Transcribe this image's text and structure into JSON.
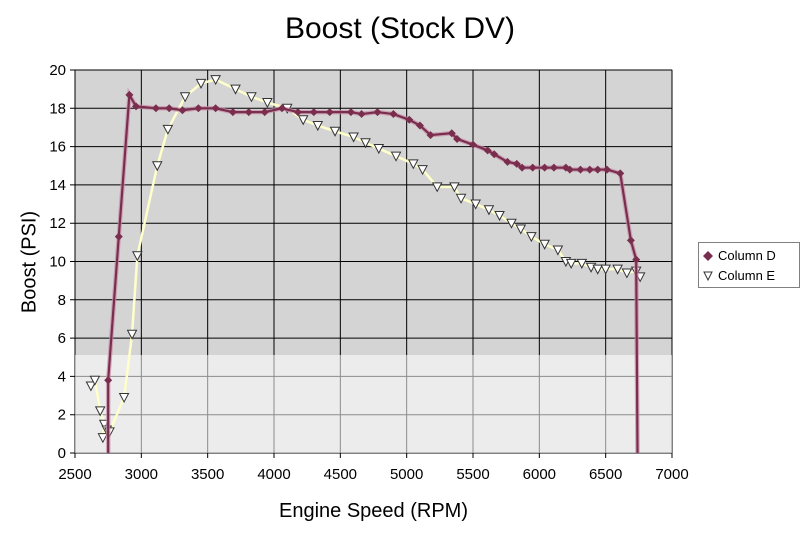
{
  "chart_data": {
    "type": "line",
    "title": "Boost (Stock DV)",
    "xlabel": "Engine Speed (RPM)",
    "ylabel": "Boost (PSI)",
    "xlim": [
      2500,
      7000
    ],
    "ylim": [
      0,
      20
    ],
    "x_ticks": [
      2500,
      3000,
      3500,
      4000,
      4500,
      5000,
      5500,
      6000,
      6500,
      7000
    ],
    "y_ticks": [
      0,
      2,
      4,
      6,
      8,
      10,
      12,
      14,
      16,
      18,
      20
    ],
    "grid": true,
    "legend_position": "right",
    "series": [
      {
        "name": "Column D",
        "marker": "diamond",
        "color": "#7a2e4e",
        "points": [
          [
            2750,
            0
          ],
          [
            2750,
            3.8
          ],
          [
            2830,
            11.3
          ],
          [
            2910,
            18.7
          ],
          [
            2960,
            18.1
          ],
          [
            3110,
            18.0
          ],
          [
            3210,
            18.0
          ],
          [
            3310,
            17.9
          ],
          [
            3430,
            18.0
          ],
          [
            3560,
            18.0
          ],
          [
            3690,
            17.8
          ],
          [
            3810,
            17.8
          ],
          [
            3930,
            17.8
          ],
          [
            4060,
            18.0
          ],
          [
            4180,
            17.8
          ],
          [
            4300,
            17.8
          ],
          [
            4420,
            17.8
          ],
          [
            4580,
            17.8
          ],
          [
            4660,
            17.7
          ],
          [
            4780,
            17.8
          ],
          [
            4900,
            17.7
          ],
          [
            5020,
            17.4
          ],
          [
            5100,
            17.1
          ],
          [
            5180,
            16.6
          ],
          [
            5340,
            16.7
          ],
          [
            5380,
            16.4
          ],
          [
            5500,
            16.1
          ],
          [
            5610,
            15.8
          ],
          [
            5660,
            15.6
          ],
          [
            5760,
            15.2
          ],
          [
            5830,
            15.1
          ],
          [
            5870,
            14.9
          ],
          [
            5950,
            14.9
          ],
          [
            6040,
            14.9
          ],
          [
            6110,
            14.9
          ],
          [
            6200,
            14.9
          ],
          [
            6230,
            14.8
          ],
          [
            6310,
            14.8
          ],
          [
            6380,
            14.8
          ],
          [
            6440,
            14.8
          ],
          [
            6510,
            14.8
          ],
          [
            6610,
            14.6
          ],
          [
            6690,
            11.1
          ],
          [
            6730,
            10.1
          ],
          [
            6740,
            0
          ]
        ]
      },
      {
        "name": "Column E",
        "marker": "triangle-down",
        "color": "#ffffcc",
        "points": [
          [
            2620,
            3.5
          ],
          [
            2650,
            3.8
          ],
          [
            2690,
            2.2
          ],
          [
            2720,
            1.5
          ],
          [
            2710,
            0.8
          ],
          [
            2740,
            1.2
          ],
          [
            2760,
            1.1
          ],
          [
            2870,
            2.9
          ],
          [
            2930,
            6.2
          ],
          [
            2970,
            10.3
          ],
          [
            3120,
            15.0
          ],
          [
            3200,
            16.9
          ],
          [
            3330,
            18.6
          ],
          [
            3450,
            19.3
          ],
          [
            3560,
            19.5
          ],
          [
            3710,
            19.0
          ],
          [
            3830,
            18.6
          ],
          [
            3950,
            18.3
          ],
          [
            4100,
            18.0
          ],
          [
            4220,
            17.4
          ],
          [
            4330,
            17.1
          ],
          [
            4460,
            16.8
          ],
          [
            4600,
            16.5
          ],
          [
            4690,
            16.2
          ],
          [
            4790,
            15.9
          ],
          [
            4920,
            15.5
          ],
          [
            5050,
            15.1
          ],
          [
            5120,
            14.8
          ],
          [
            5230,
            13.9
          ],
          [
            5360,
            13.9
          ],
          [
            5410,
            13.3
          ],
          [
            5520,
            13.0
          ],
          [
            5620,
            12.7
          ],
          [
            5700,
            12.4
          ],
          [
            5790,
            12.0
          ],
          [
            5860,
            11.7
          ],
          [
            5940,
            11.3
          ],
          [
            6040,
            10.9
          ],
          [
            6140,
            10.6
          ],
          [
            6200,
            10.0
          ],
          [
            6240,
            9.9
          ],
          [
            6320,
            9.9
          ],
          [
            6390,
            9.7
          ],
          [
            6440,
            9.6
          ],
          [
            6500,
            9.6
          ],
          [
            6590,
            9.6
          ],
          [
            6660,
            9.4
          ],
          [
            6730,
            9.5
          ],
          [
            6760,
            9.2
          ]
        ]
      }
    ]
  },
  "legend": {
    "items": [
      {
        "label": "Column D",
        "icon": "diamond-marker-icon"
      },
      {
        "label": "Column E",
        "icon": "triangle-down-marker-icon"
      }
    ]
  },
  "colors": {
    "plot_bg": "#d4d4d4",
    "gridline": "#000000",
    "series_d": "#7a2e4e",
    "series_e_line": "#ffffcc"
  }
}
